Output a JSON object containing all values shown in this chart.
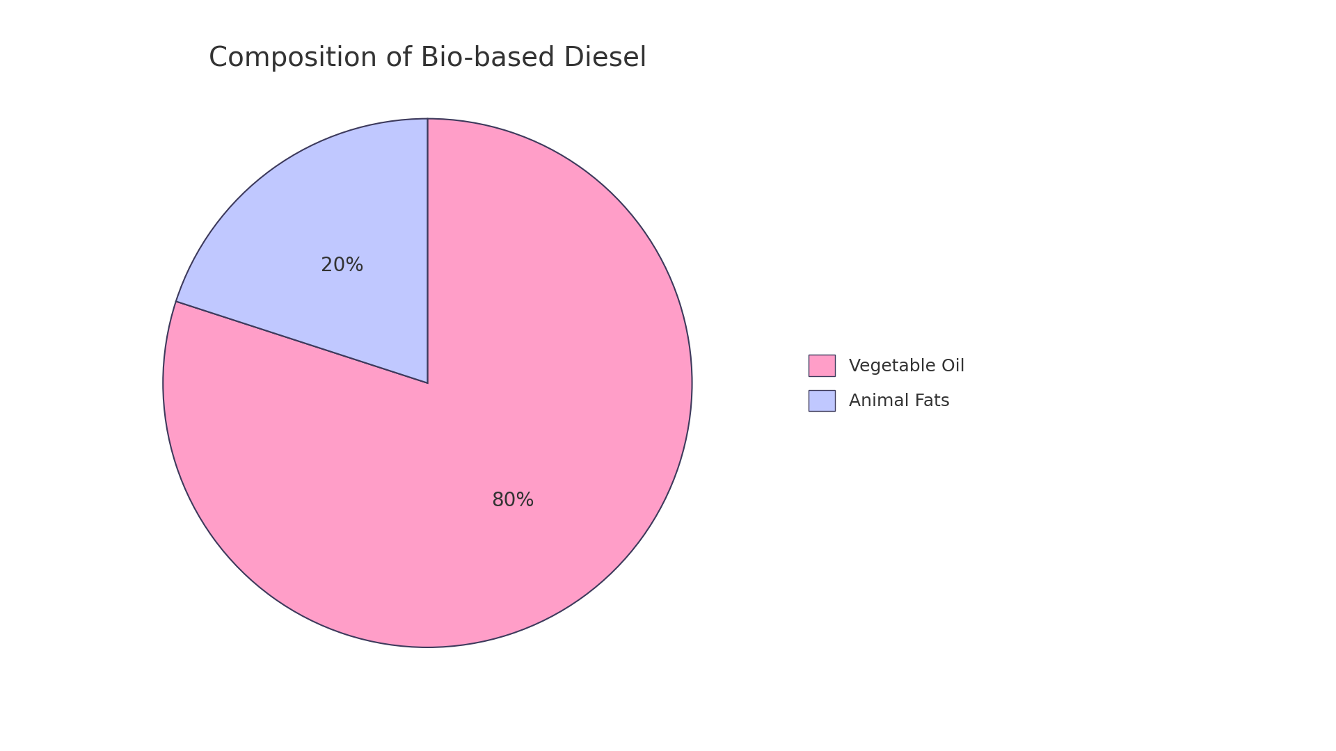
{
  "title": "Composition of Bio-based Diesel",
  "labels": [
    "Vegetable Oil",
    "Animal Fats"
  ],
  "values": [
    80,
    20
  ],
  "colors": [
    "#FF9EC8",
    "#C0C8FF"
  ],
  "edge_color": "#3d3a5c",
  "edge_width": 1.5,
  "startangle": 90,
  "title_fontsize": 28,
  "autopct_fontsize": 20,
  "legend_fontsize": 18,
  "background_color": "#ffffff",
  "text_color": "#333333",
  "pctdistance": 0.55
}
